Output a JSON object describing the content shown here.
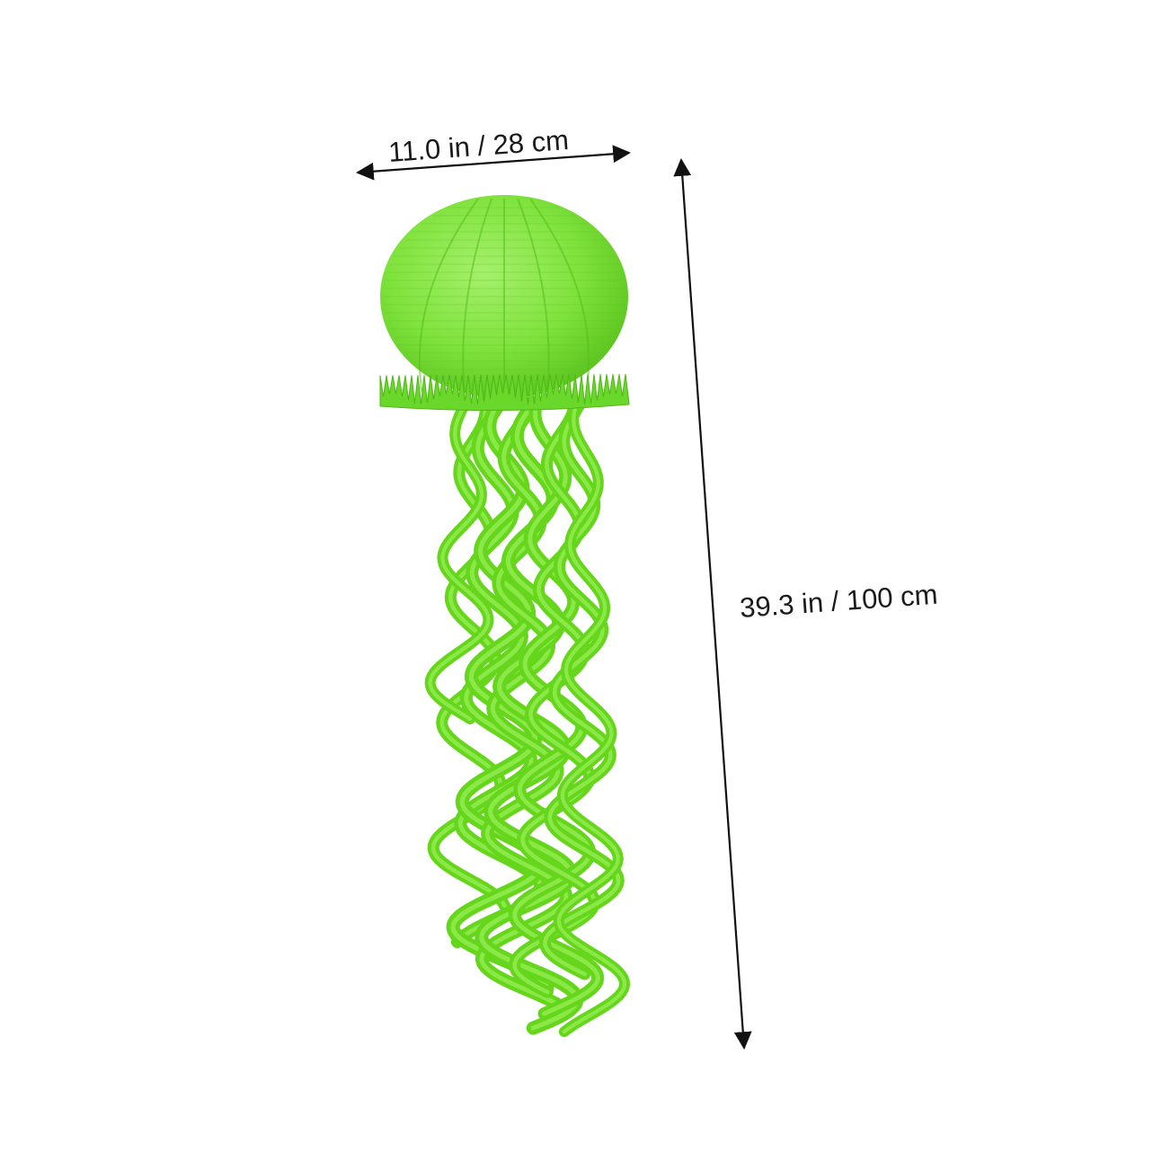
{
  "product": {
    "name": "green paper lantern jellyfish decoration",
    "body_color": "#7fe23c",
    "body_shadow_color": "#5cc41f",
    "tentacle_color": "#66d61c",
    "tentacle_light_color": "#9af05a"
  },
  "dimensions": {
    "width_label": "11.0 in / 28 cm",
    "height_label": "39.3 in / 100 cm",
    "arrow_color": "#111111"
  },
  "icons": {
    "width_arrow": "double-headed-arrow-icon",
    "height_arrow": "double-headed-arrow-icon"
  }
}
